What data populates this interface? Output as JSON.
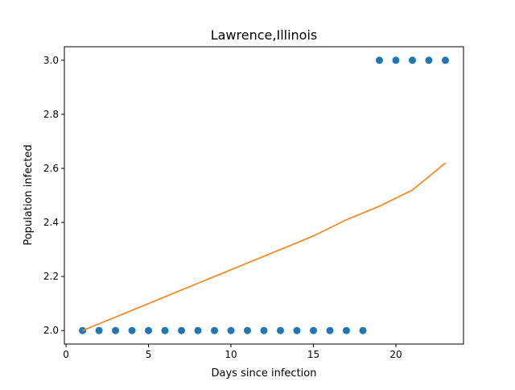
{
  "chart_data": {
    "type": "scatter",
    "title": "Lawrence,Illinois",
    "xlabel": "Days since infection",
    "ylabel": "Population infected",
    "xlim": [
      -0.1,
      24.1
    ],
    "ylim": [
      1.95,
      3.05
    ],
    "xticks": [
      0,
      5,
      10,
      15,
      20
    ],
    "yticks": [
      2.0,
      2.2,
      2.4,
      2.6,
      2.8,
      3.0
    ],
    "xtick_labels": [
      "0",
      "5",
      "10",
      "15",
      "20"
    ],
    "ytick_labels": [
      "2.0",
      "2.2",
      "2.4",
      "2.6",
      "2.8",
      "3.0"
    ],
    "grid": false,
    "series": [
      {
        "type": "scatter",
        "color": "#1f77b4",
        "x": [
          1,
          2,
          3,
          4,
          5,
          6,
          7,
          8,
          9,
          10,
          11,
          12,
          13,
          14,
          15,
          16,
          17,
          18,
          19,
          20,
          21,
          22,
          23
        ],
        "y": [
          2,
          2,
          2,
          2,
          2,
          2,
          2,
          2,
          2,
          2,
          2,
          2,
          2,
          2,
          2,
          2,
          2,
          2,
          3,
          3,
          3,
          3,
          3
        ]
      },
      {
        "type": "line",
        "color": "#ff7f0e",
        "x": [
          1,
          3,
          5,
          7,
          9,
          11,
          13,
          15,
          17,
          19,
          21,
          23
        ],
        "y": [
          2.0,
          2.05,
          2.1,
          2.15,
          2.2,
          2.25,
          2.3,
          2.35,
          2.41,
          2.46,
          2.52,
          2.62
        ]
      }
    ]
  }
}
